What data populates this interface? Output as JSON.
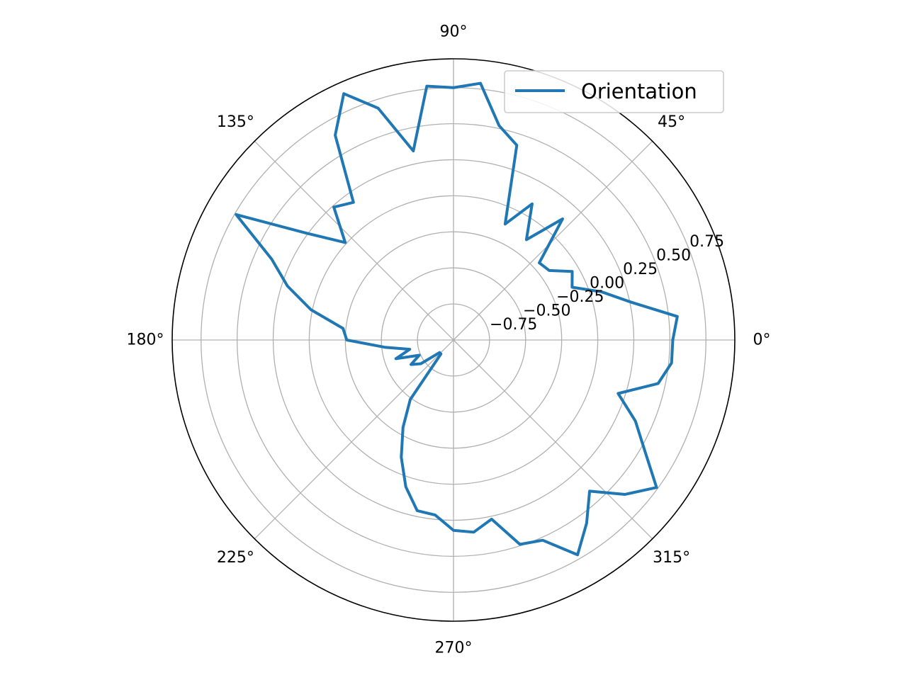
{
  "chart_data": {
    "type": "line",
    "projection": "polar",
    "title": "",
    "legend": {
      "position": "upper-right",
      "entries": [
        "Orientation"
      ]
    },
    "grid": true,
    "theta_unit": "degrees",
    "theta_ticks": [
      "0°",
      "45°",
      "90°",
      "135°",
      "180°",
      "225°",
      "270°",
      "315°"
    ],
    "theta_tick_values": [
      0,
      45,
      90,
      135,
      180,
      225,
      270,
      315
    ],
    "r_ticks": [
      "−0.75",
      "−0.50",
      "−0.25",
      "0.00",
      "0.25",
      "0.50",
      "0.75"
    ],
    "r_tick_values": [
      -0.75,
      -0.5,
      -0.25,
      0.0,
      0.25,
      0.5,
      0.75
    ],
    "rlim": [
      -1.0,
      0.95
    ],
    "series": [
      {
        "name": "Orientation",
        "color": "#1f77b4",
        "theta_deg": [
          0,
          6,
          12,
          18,
          24,
          30,
          36,
          42,
          48,
          54,
          60,
          66,
          72,
          78,
          84,
          90,
          96,
          102,
          108,
          114,
          120,
          126,
          132,
          138,
          144,
          150,
          156,
          162,
          168,
          174,
          180,
          186,
          192,
          198,
          204,
          210,
          216,
          222,
          228,
          234,
          240,
          246,
          252,
          258,
          264,
          270,
          276,
          282,
          288,
          294,
          300,
          306,
          312,
          318,
          324,
          330,
          336,
          342,
          348,
          354,
          360
        ],
        "r": [
          0.52,
          0.56,
          0.26,
          0.08,
          -0.1,
          -0.05,
          -0.18,
          -0.2,
          0.13,
          -0.14,
          0.09,
          -0.12,
          0.42,
          0.52,
          0.79,
          0.75,
          0.77,
          0.34,
          0.69,
          0.87,
          0.64,
          0.18,
          0.24,
          0.01,
          0.26,
          0.74,
          0.38,
          0.21,
          0.01,
          -0.23,
          -0.26,
          -0.52,
          -0.69,
          -0.58,
          -0.74,
          -0.66,
          -0.72,
          -0.87,
          -0.87,
          -0.49,
          -0.3,
          -0.11,
          0.07,
          0.21,
          0.22,
          0.32,
          0.34,
          0.27,
          0.49,
          0.52,
          0.72,
          0.57,
          0.41,
          0.6,
          0.74,
          0.53,
          0.38,
          0.2,
          0.45,
          0.52,
          0.52
        ]
      }
    ]
  }
}
